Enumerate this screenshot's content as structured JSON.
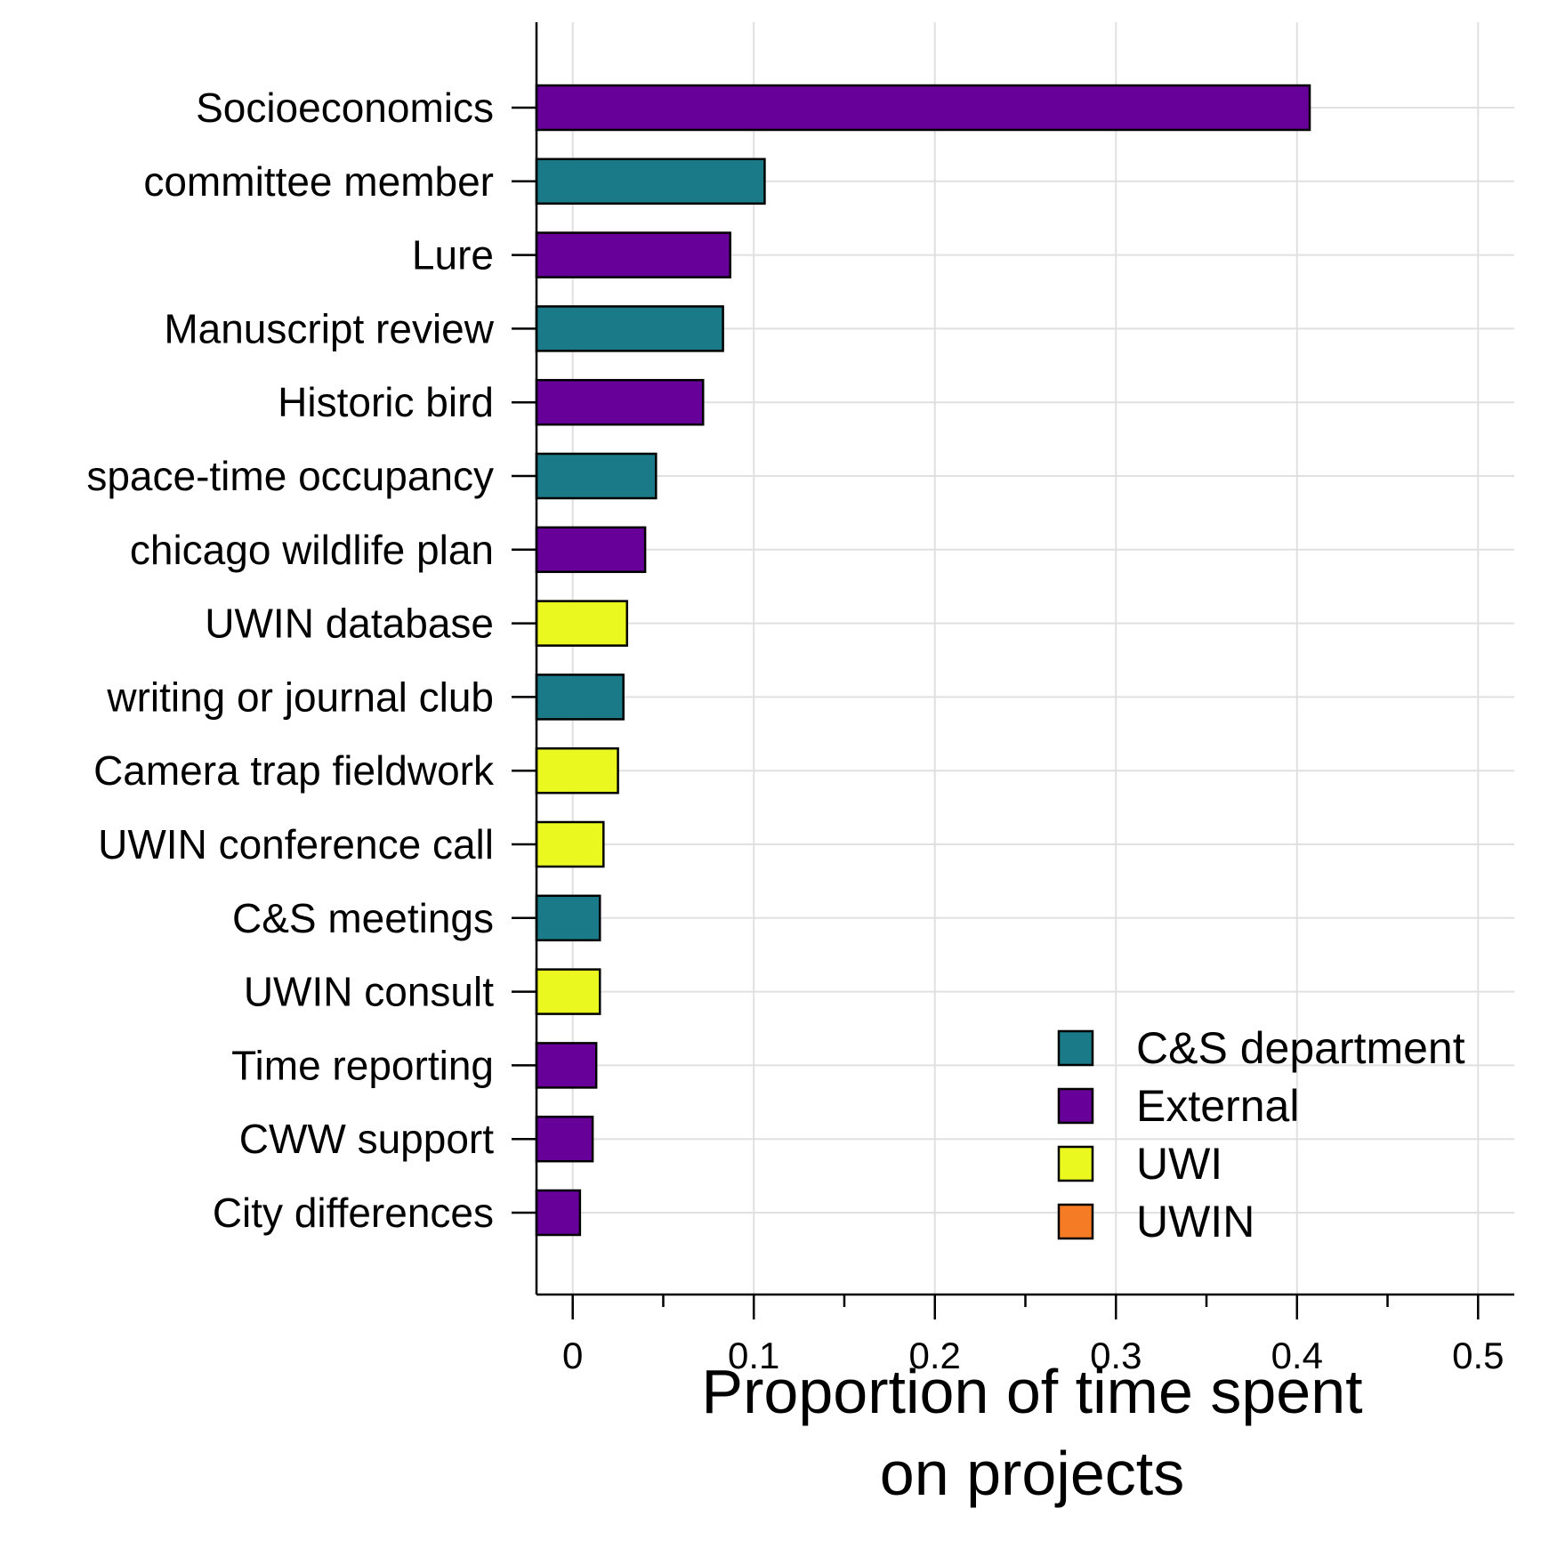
{
  "chart_data": {
    "type": "bar",
    "orientation": "horizontal",
    "title": "",
    "xlabel_lines": [
      "Proportion of time spent",
      "on projects"
    ],
    "ylabel": "",
    "xlim": [
      -0.02,
      0.52
    ],
    "x_ticks": [
      0,
      0.1,
      0.2,
      0.3,
      0.4,
      0.5
    ],
    "x_tick_labels": [
      "0",
      "0.1",
      "0.2",
      "0.3",
      "0.4",
      "0.5"
    ],
    "grid": true,
    "legend_position": "bottom-right",
    "groups": [
      {
        "name": "C&S department",
        "color": "#1b7a87"
      },
      {
        "name": "External",
        "color": "#660099"
      },
      {
        "name": "UWI",
        "color": "#eaf820"
      },
      {
        "name": "UWIN",
        "color": "#f57c25"
      }
    ],
    "bars": [
      {
        "label": "Socioeconomics",
        "value": 0.407,
        "group": "External"
      },
      {
        "label": "committee member",
        "value": 0.106,
        "group": "C&S department"
      },
      {
        "label": "Lure",
        "value": 0.087,
        "group": "External"
      },
      {
        "label": "Manuscript review",
        "value": 0.083,
        "group": "C&S department"
      },
      {
        "label": "Historic bird",
        "value": 0.072,
        "group": "External"
      },
      {
        "label": "space-time occupancy",
        "value": 0.046,
        "group": "C&S department"
      },
      {
        "label": "chicago wildlife plan",
        "value": 0.04,
        "group": "External"
      },
      {
        "label": "UWIN database",
        "value": 0.03,
        "group": "UWI"
      },
      {
        "label": "writing or journal club",
        "value": 0.028,
        "group": "C&S department"
      },
      {
        "label": "Camera trap fieldwork",
        "value": 0.025,
        "group": "UWI"
      },
      {
        "label": "UWIN conference call",
        "value": 0.017,
        "group": "UWI"
      },
      {
        "label": "C&S meetings",
        "value": 0.015,
        "group": "C&S department"
      },
      {
        "label": "UWIN consult",
        "value": 0.015,
        "group": "UWI"
      },
      {
        "label": "Time reporting",
        "value": 0.013,
        "group": "External"
      },
      {
        "label": "CWW support",
        "value": 0.011,
        "group": "External"
      },
      {
        "label": "City differences",
        "value": 0.004,
        "group": "External"
      }
    ]
  }
}
